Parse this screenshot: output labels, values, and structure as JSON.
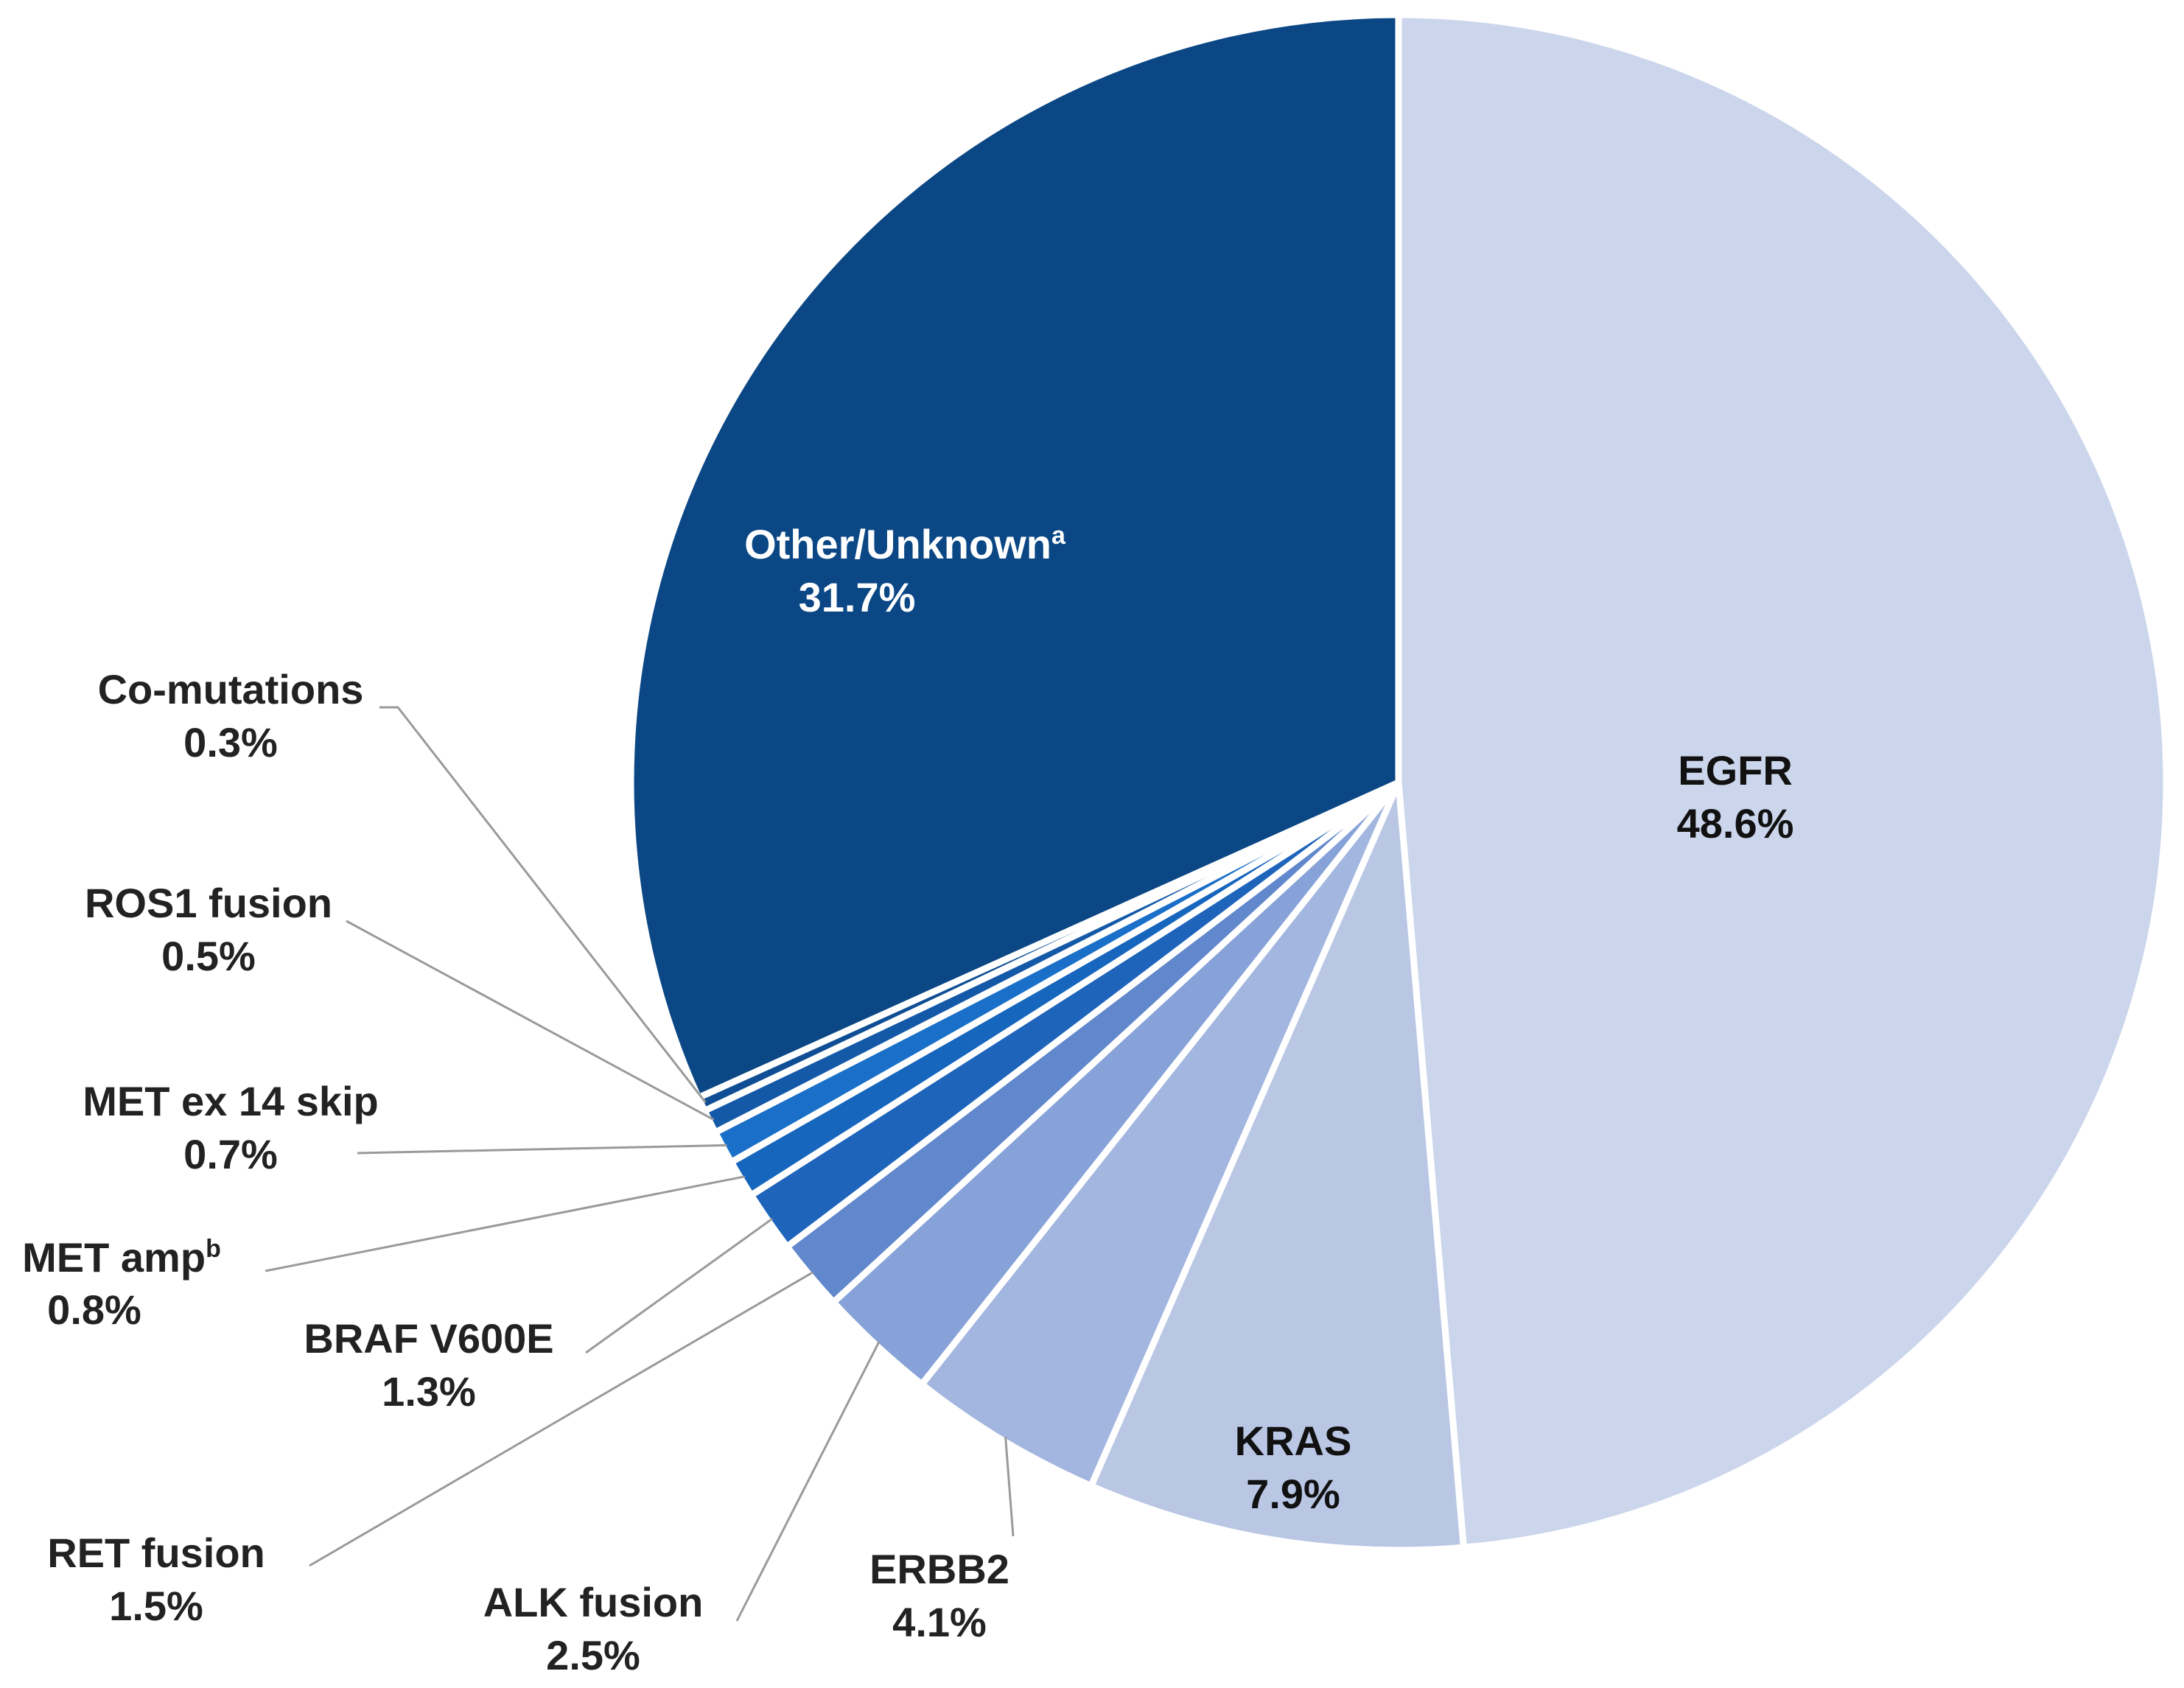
{
  "chart_data": {
    "type": "pie",
    "title": "",
    "start_angle_deg": 0,
    "direction": "clockwise",
    "slices": [
      {
        "name": "EGFR",
        "value": 48.6,
        "label": "48.6%",
        "color": "#cbd5eb"
      },
      {
        "name": "KRAS",
        "value": 7.9,
        "label": "7.9%",
        "color": "#b9c7e5"
      },
      {
        "name": "ERBB2",
        "value": 4.1,
        "label": "4.1%",
        "color": "#a3b6df"
      },
      {
        "name": "ALK fusion",
        "value": 2.5,
        "label": "2.5%",
        "color": "#87a2d8"
      },
      {
        "name": "RET fusion",
        "value": 1.5,
        "label": "1.5%",
        "color": "#6187cc"
      },
      {
        "name": "BRAF V600E",
        "value": 1.3,
        "label": "1.3%",
        "color": "#1e64bb"
      },
      {
        "name": "MET amp",
        "sup": "b",
        "value": 0.8,
        "label": "0.8%",
        "color": "#1766bd"
      },
      {
        "name": "MET ex 14 skip",
        "value": 0.7,
        "label": "0.7%",
        "color": "#1a70c8"
      },
      {
        "name": "ROS1 fusion",
        "value": 0.5,
        "label": "0.5%",
        "color": "#1459a8"
      },
      {
        "name": "Co-mutations",
        "value": 0.3,
        "label": "0.3%",
        "color": "#0f4e94"
      },
      {
        "name": "Other/Unknown",
        "sup": "a",
        "value": 31.7,
        "label": "31.7%",
        "color": "#0b4785"
      }
    ]
  }
}
